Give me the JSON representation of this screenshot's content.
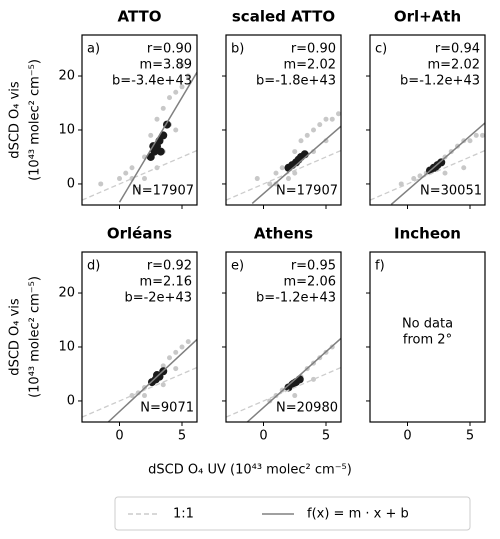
{
  "figure": {
    "ylabel": [
      "dSCD O₄ vis",
      "(10⁴³ molec² cm⁻⁵)"
    ],
    "xlabel": "dSCD O₄ UV (10⁴³ molec² cm⁻⁵)",
    "legend": [
      {
        "name": "1:1",
        "color": "#cccccc",
        "style": "dashed"
      },
      {
        "name": "f(x) = m · x + b",
        "color": "#808080",
        "style": "solid"
      }
    ]
  },
  "chart_data": [
    {
      "type": "scatter",
      "title": "ATTO",
      "label": "a)",
      "stats": [
        "r=0.90",
        "m=3.89",
        "b=-3.4e+43"
      ],
      "n": "N=17907",
      "xlim": [
        -3,
        6.2
      ],
      "ylim": [
        -3.9,
        27.6
      ],
      "xticks": [
        0,
        5
      ],
      "yticks": [
        0,
        10,
        20
      ],
      "xtick_labels": false,
      "ytick_labels": true,
      "scatter": [
        {
          "color": "#c8c8c8",
          "x": [
            -1.5,
            0,
            0.5,
            1,
            1.5,
            2,
            2.5,
            3,
            3.5,
            4,
            4.5,
            5,
            5.5,
            4,
            3,
            2,
            1,
            3.5,
            4.5,
            5
          ],
          "y": [
            0,
            1,
            2,
            3,
            -1,
            5,
            9,
            12,
            14,
            16,
            17,
            18,
            20,
            11,
            3,
            1,
            1,
            6,
            10,
            22
          ]
        },
        {
          "color": "#1a1a1a",
          "x": [
            2.5,
            2.8,
            3,
            3.2,
            3.5,
            3.8,
            2.7,
            3.3
          ],
          "y": [
            5,
            6,
            7,
            8,
            9,
            11,
            7,
            6
          ]
        }
      ],
      "fit_line": {
        "x": [
          0,
          6.2
        ],
        "y": [
          -3.4,
          20.7
        ]
      }
    },
    {
      "type": "scatter",
      "title": "scaled ATTO",
      "label": "b)",
      "stats": [
        "r=0.90",
        "m=2.02",
        "b=-1.8e+43"
      ],
      "n": "N=17907",
      "xlim": [
        -3,
        6.2
      ],
      "ylim": [
        -3.9,
        27.6
      ],
      "xticks": [
        0,
        5
      ],
      "yticks": [
        0,
        10,
        20
      ],
      "xtick_labels": false,
      "ytick_labels": false,
      "scatter": [
        {
          "color": "#c8c8c8",
          "x": [
            -0.5,
            0.5,
            1,
            1.5,
            2,
            2.5,
            3,
            3.5,
            4,
            4.5,
            5,
            5.5,
            6,
            1,
            2.5,
            4,
            5
          ],
          "y": [
            1,
            0,
            2,
            3,
            1,
            6,
            8,
            9,
            10,
            11,
            12,
            12,
            13,
            0,
            2,
            6,
            8
          ]
        },
        {
          "color": "#1a1a1a",
          "x": [
            2,
            2.3,
            2.6,
            3,
            3.3,
            2.8
          ],
          "y": [
            3,
            3.5,
            4,
            5,
            5.5,
            4.5
          ]
        }
      ],
      "fit_line": {
        "x": [
          -0.9,
          6.2
        ],
        "y": [
          -3.6,
          10.7
        ]
      }
    },
    {
      "type": "scatter",
      "title": "Orl+Ath",
      "label": "c)",
      "stats": [
        "r=0.94",
        "m=2.02",
        "b=-1.2e+43"
      ],
      "n": "N=30051",
      "xlim": [
        -3,
        6.2
      ],
      "ylim": [
        -3.9,
        27.6
      ],
      "xticks": [
        0,
        5
      ],
      "yticks": [
        0,
        10,
        20
      ],
      "xtick_labels": false,
      "ytick_labels": false,
      "scatter": [
        {
          "color": "#c8c8c8",
          "x": [
            0.5,
            1,
            1.5,
            2,
            2.5,
            3,
            3.5,
            4,
            4.5,
            5,
            5.5,
            6,
            -0.5,
            3,
            4.5
          ],
          "y": [
            1,
            1.5,
            2,
            3,
            4,
            5,
            6,
            7,
            8,
            8,
            9,
            9,
            0,
            2,
            3
          ]
        },
        {
          "color": "#1a1a1a",
          "x": [
            1.8,
            2.1,
            2.4,
            2.7,
            2.2
          ],
          "y": [
            2.5,
            3,
            3.5,
            4,
            3
          ]
        }
      ],
      "fit_line": {
        "x": [
          -1.3,
          6.2
        ],
        "y": [
          -3.8,
          11.3
        ]
      }
    },
    {
      "type": "scatter",
      "title": "Orléans",
      "label": "d)",
      "stats": [
        "r=0.92",
        "m=2.16",
        "b=-2e+43"
      ],
      "n": "N=9071",
      "xlim": [
        -3,
        6.2
      ],
      "ylim": [
        -3.9,
        27.6
      ],
      "xticks": [
        0,
        5
      ],
      "yticks": [
        0,
        10,
        20
      ],
      "xtick_labels": true,
      "ytick_labels": true,
      "scatter": [
        {
          "color": "#c8c8c8",
          "x": [
            1,
            1.5,
            2,
            2.5,
            3,
            3.5,
            4,
            4.5,
            5,
            5.5,
            2,
            3.5,
            4.5
          ],
          "y": [
            1,
            1.5,
            2.5,
            3.5,
            5,
            6.5,
            8,
            9,
            10,
            11,
            1,
            3,
            6
          ]
        },
        {
          "color": "#1a1a1a",
          "x": [
            2.6,
            2.9,
            3.2,
            3.5,
            3
          ],
          "y": [
            3.5,
            4,
            4.5,
            5.5,
            4.8
          ]
        }
      ],
      "fit_line": {
        "x": [
          -0.9,
          6.2
        ],
        "y": [
          -3.9,
          11.4
        ]
      }
    },
    {
      "type": "scatter",
      "title": "Athens",
      "label": "e)",
      "stats": [
        "r=0.95",
        "m=2.06",
        "b=-1.2e+43"
      ],
      "n": "N=20980",
      "xlim": [
        -3,
        6.2
      ],
      "ylim": [
        -3.9,
        27.6
      ],
      "xticks": [
        0,
        5
      ],
      "yticks": [
        0,
        10,
        20
      ],
      "xtick_labels": true,
      "ytick_labels": false,
      "scatter": [
        {
          "color": "#c8c8c8",
          "x": [
            0.5,
            1,
            1.5,
            2,
            2.5,
            3,
            3.5,
            4,
            4.5,
            5,
            5.5,
            2.5,
            4
          ],
          "y": [
            0,
            1,
            2,
            2.5,
            3.5,
            4.5,
            6,
            7,
            8,
            9,
            10,
            1,
            4
          ]
        },
        {
          "color": "#1a1a1a",
          "x": [
            2,
            2.3,
            2.6,
            2.9,
            2.4
          ],
          "y": [
            2.5,
            3,
            3.5,
            4,
            3.2
          ]
        }
      ],
      "fit_line": {
        "x": [
          -1.3,
          6.2
        ],
        "y": [
          -3.9,
          11.6
        ]
      }
    },
    {
      "type": "empty",
      "title": "Incheon",
      "label": "f)",
      "annotation": [
        "No data",
        "from 2°"
      ],
      "xlim": [
        -3,
        6.2
      ],
      "ylim": [
        -3.9,
        27.6
      ],
      "xticks": [
        0,
        5
      ],
      "yticks": [
        0,
        10,
        20
      ],
      "xtick_labels": true,
      "ytick_labels": false
    }
  ]
}
